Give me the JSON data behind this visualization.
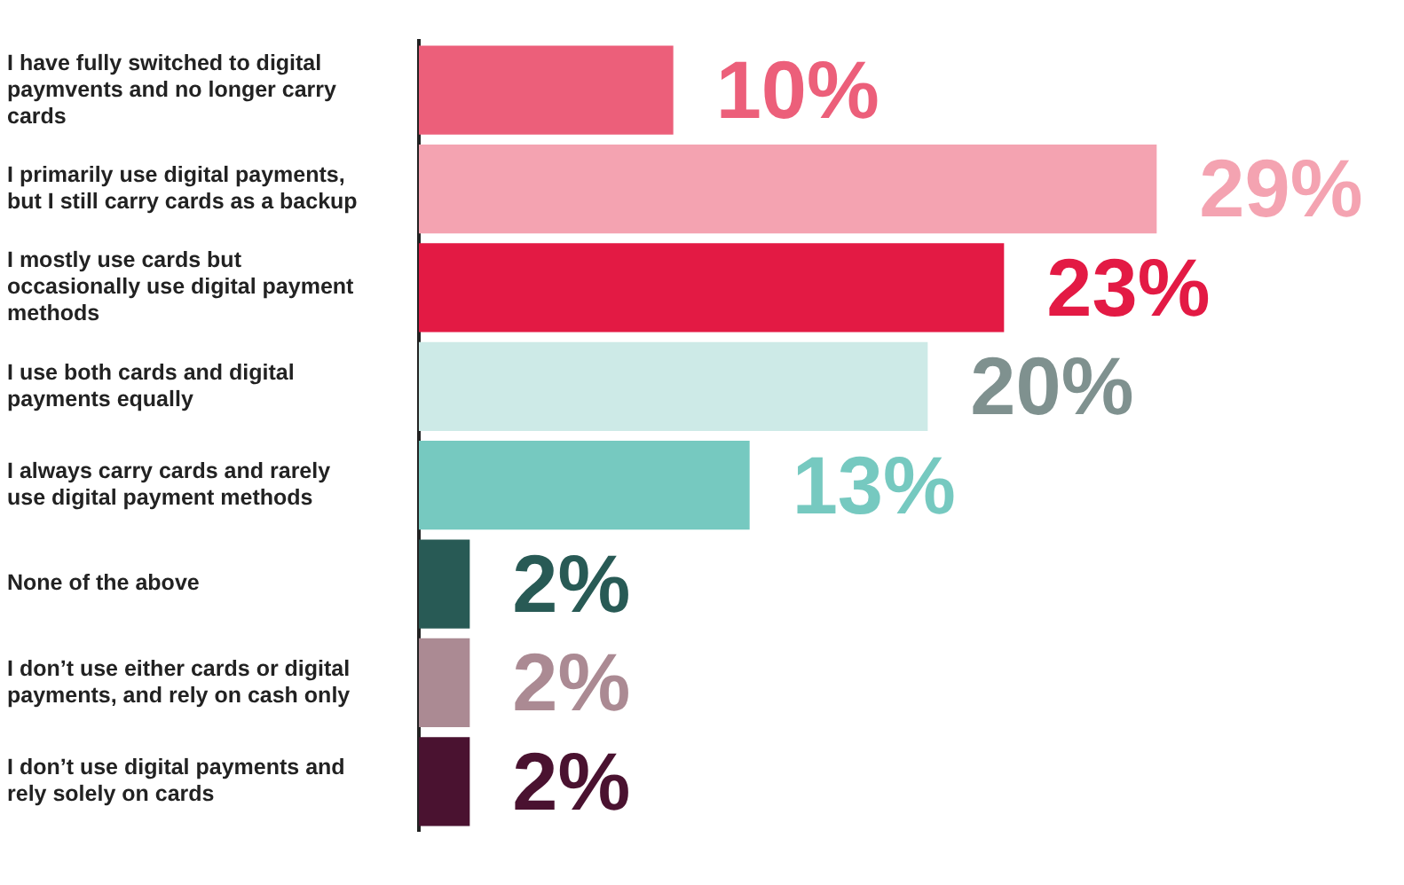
{
  "chart_data": {
    "type": "bar",
    "orientation": "horizontal",
    "categories": [
      "I have fully switched to digital paymvents and no longer carry cards",
      "I primarily use digital payments, but I still carry cards as a backup",
      "I mostly use cards but occasionally use digital payment methods",
      "I use both cards and digital payments equally",
      "I always carry cards and rarely use digital payment methods",
      "None of the above",
      "I don’t use either cards or digital payments, and rely on cash only",
      "I don’t use digital payments and rely solely on cards"
    ],
    "values": [
      10,
      29,
      23,
      20,
      13,
      2,
      2,
      2
    ],
    "colors": [
      "#ec5f7a",
      "#f4a3b1",
      "#e31a44",
      "#cdeae7",
      "#76c9c0",
      "#285a55",
      "#ab8a93",
      "#4a1230"
    ],
    "value_labels": [
      "10%",
      "29%",
      "23%",
      "20%",
      "13%",
      "2%",
      "2%",
      "2%"
    ],
    "tick_labels": "y",
    "grid": false,
    "legend": false
  }
}
